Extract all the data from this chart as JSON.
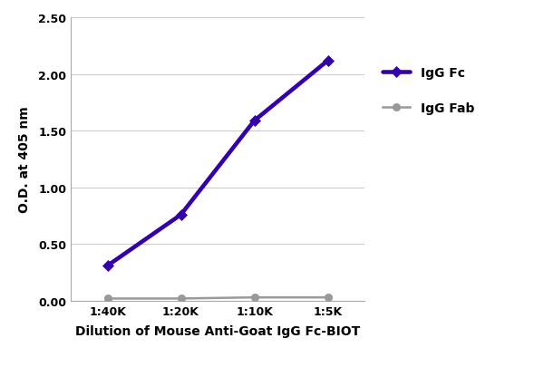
{
  "x_labels": [
    "1:40K",
    "1:20K",
    "1:10K",
    "1:5K"
  ],
  "x_values": [
    1,
    2,
    3,
    4
  ],
  "igg_fc_values": [
    0.31,
    0.76,
    1.59,
    2.12
  ],
  "igg_fab_values": [
    0.02,
    0.02,
    0.03,
    0.03
  ],
  "igg_fc_color": "#3300aa",
  "igg_fab_color": "#999999",
  "xlabel": "Dilution of Mouse Anti-Goat IgG Fc-BIOT",
  "ylabel": "O.D. at 405 nm",
  "ylim": [
    0.0,
    2.5
  ],
  "yticks": [
    0.0,
    0.5,
    1.0,
    1.5,
    2.0,
    2.5
  ],
  "legend_fc_label": "IgG Fc",
  "legend_fab_label": "IgG Fab",
  "bg_color": "#ffffff",
  "grid_color": "#cccccc",
  "line_width": 1.8,
  "marker_size": 6,
  "fc_marker": "D",
  "fab_marker": "o",
  "tick_fontsize": 9,
  "label_fontsize": 10,
  "legend_fontsize": 10
}
